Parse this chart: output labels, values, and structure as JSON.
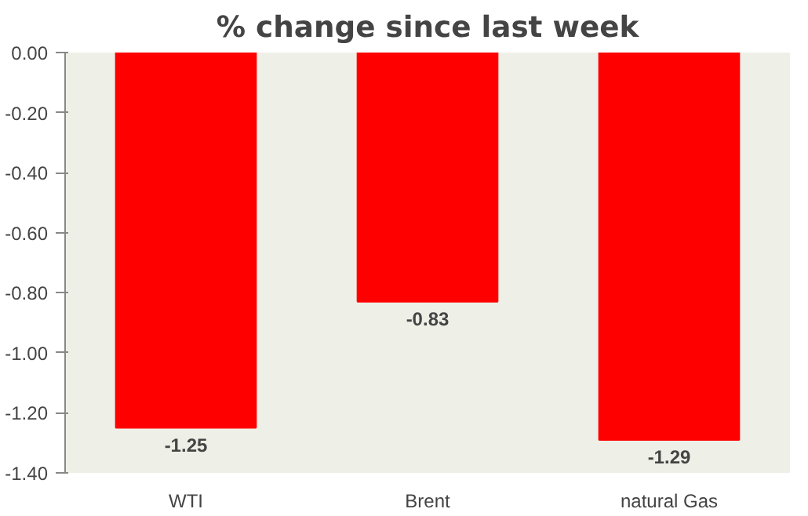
{
  "chart_data": {
    "type": "bar",
    "title": "% change since last week",
    "categories": [
      "WTI",
      "Brent",
      "natural Gas"
    ],
    "values": [
      -1.25,
      -0.83,
      -1.29
    ],
    "color": "#ff0000",
    "ylim": [
      -1.4,
      0
    ],
    "yticks": [
      {
        "value": 0,
        "label": "0.00"
      },
      {
        "value": -0.2,
        "label": "-0.20"
      },
      {
        "value": -0.4,
        "label": "-0.40"
      },
      {
        "value": -0.6,
        "label": "-0.60"
      },
      {
        "value": -0.8,
        "label": "-0.80"
      },
      {
        "value": -1.0,
        "label": "-1.00"
      },
      {
        "value": -1.2,
        "label": "-1.20"
      },
      {
        "value": -1.4,
        "label": "-1.40"
      }
    ],
    "data_labels": true,
    "grid": false
  }
}
